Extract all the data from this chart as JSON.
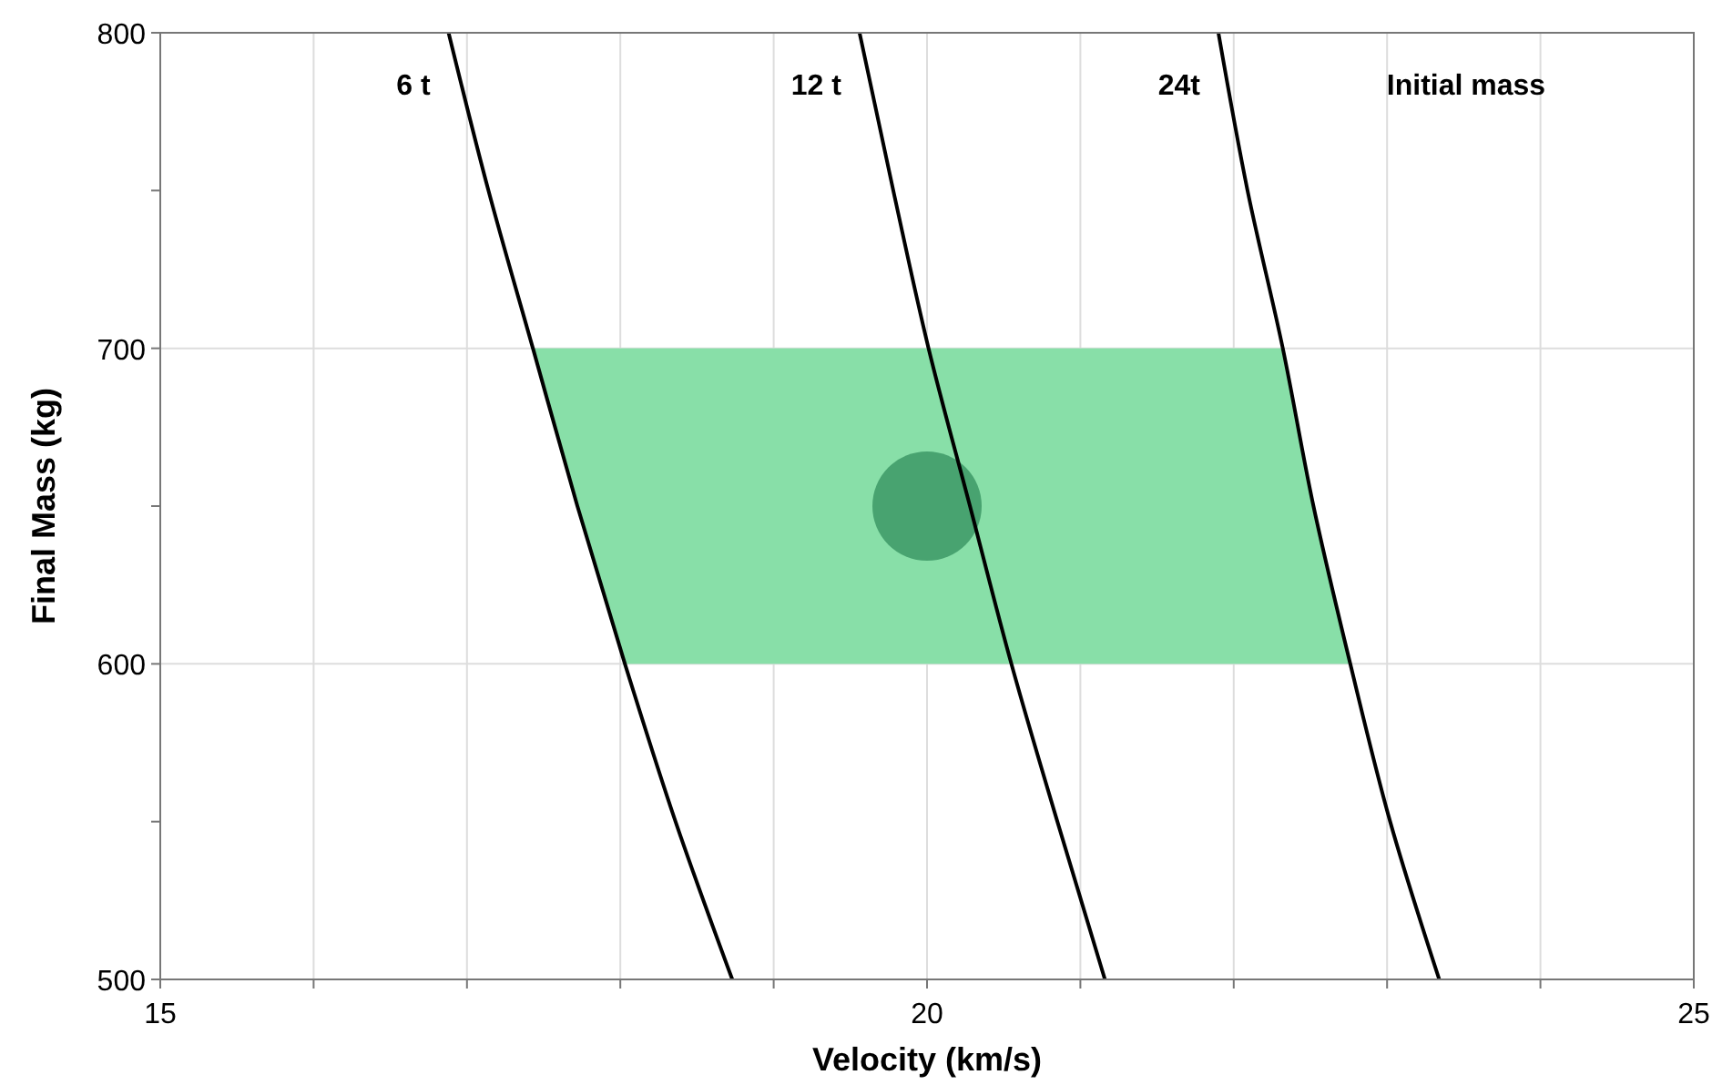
{
  "chart_data": {
    "type": "line",
    "xlabel": "Velocity (km/s)",
    "ylabel": "Final Mass (kg)",
    "xlim": [
      15,
      25
    ],
    "ylim": [
      500,
      800
    ],
    "xticks": [
      15,
      {
        "value": 16,
        "label": null
      },
      {
        "value": 17,
        "label": null
      },
      {
        "value": 18,
        "label": null
      },
      {
        "value": 19,
        "label": null
      },
      20,
      {
        "value": 21,
        "label": null
      },
      {
        "value": 22,
        "label": null
      },
      {
        "value": 23,
        "label": null
      },
      {
        "value": 24,
        "label": null
      },
      25
    ],
    "yticks": [
      500,
      {
        "value": 550,
        "label": null
      },
      600,
      {
        "value": 650,
        "label": null
      },
      700,
      {
        "value": 750,
        "label": null
      },
      800
    ],
    "grid": true,
    "marker": "none",
    "line_style": "solid",
    "annotations": [
      "Initial mass"
    ],
    "bands": [
      {
        "axis": "y",
        "from": 600,
        "to": 700,
        "color": "#88dfa8"
      }
    ],
    "series": [
      {
        "name": "6 t",
        "color": "#000000",
        "x": [
          16.88,
          17.14,
          17.43,
          17.72,
          18.03,
          18.36,
          18.73
        ],
        "values": [
          800,
          750,
          700,
          650,
          600,
          550,
          500
        ]
      },
      {
        "name": "12 t",
        "color": "#000000",
        "x": [
          19.56,
          19.78,
          20.01,
          20.28,
          20.55,
          20.85,
          21.16
        ],
        "values": [
          800,
          750,
          700,
          650,
          600,
          550,
          500
        ]
      },
      {
        "name": "24t",
        "color": "#000000",
        "x": [
          21.9,
          22.09,
          22.32,
          22.52,
          22.76,
          23.02,
          23.34
        ],
        "values": [
          800,
          750,
          700,
          650,
          600,
          550,
          500
        ]
      },
      {
        "type": "scatter",
        "color": "#48a370",
        "marker": "circle",
        "x": [
          20
        ],
        "values": [
          650
        ]
      }
    ]
  }
}
